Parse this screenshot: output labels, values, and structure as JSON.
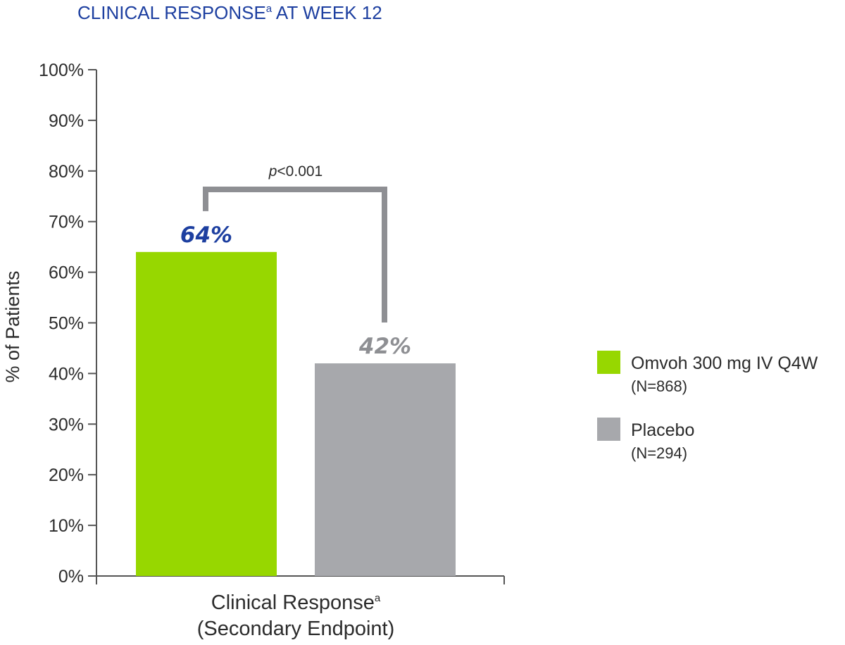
{
  "chart_data": {
    "type": "bar",
    "title": "CLINICAL RESPONSE",
    "title_sup": "a",
    "title_suffix": " AT WEEK 12",
    "ylabel": "% of Patients",
    "xlabel_line1": "Clinical Response",
    "xlabel_line1_sup": "a",
    "xlabel_line2": "(Secondary Endpoint)",
    "ylim": [
      0,
      100
    ],
    "yticks": [
      "0%",
      "10%",
      "20%",
      "30%",
      "40%",
      "50%",
      "60%",
      "70%",
      "80%",
      "90%",
      "100%"
    ],
    "grid": false,
    "legend_position": "right",
    "series": [
      {
        "name": "Omvoh 300 mg IV Q4W",
        "n_label": "(N=868)",
        "value": 64,
        "value_label": "64%",
        "color": "#97d700",
        "label_color": "#1d3fa0"
      },
      {
        "name": "Placebo",
        "n_label": "(N=294)",
        "value": 42,
        "value_label": "42%",
        "color": "#a7a8ac",
        "label_color": "#8e8f93"
      }
    ],
    "annotation": {
      "p_italic": "p",
      "p_rest": "<0.001"
    },
    "bracket_color": "#8e8f93"
  }
}
